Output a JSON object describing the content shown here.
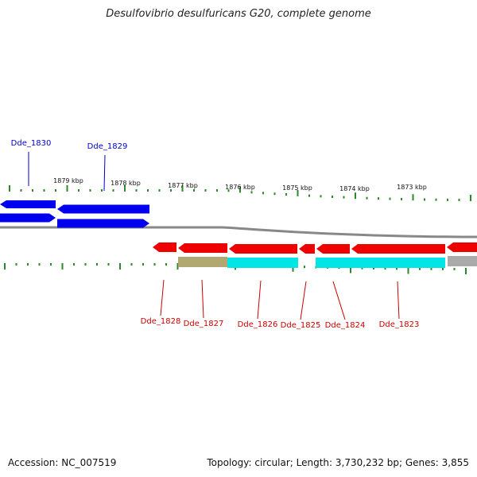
{
  "title": "Desulfovibrio desulfuricans G20, complete genome",
  "footer": {
    "accession": "Accession: NC_007519",
    "stats": "Topology: circular; Length: 3,730,232 bp; Genes: 3,855"
  },
  "colors": {
    "forward_gene": "#0000ee",
    "reverse_gene": "#ee0000",
    "cyan_track": "#00e5e5",
    "olive_track": "#b0a870",
    "grey_track": "#aaaaaa",
    "backbone": "#888888",
    "tick": "#2a8a2a",
    "forward_label": "#0000cc",
    "reverse_label": "#cc0000"
  },
  "kbp_labels": [
    "1879 kbp",
    "1878 kbp",
    "1877 kbp",
    "1876 kbp",
    "1875 kbp",
    "1874 kbp",
    "1873 kbp"
  ],
  "genes_forward": [
    "Dde_1830",
    "Dde_1829"
  ],
  "genes_reverse": [
    "Dde_1828",
    "Dde_1827",
    "Dde_1826",
    "Dde_1825",
    "Dde_1824",
    "Dde_1823"
  ]
}
